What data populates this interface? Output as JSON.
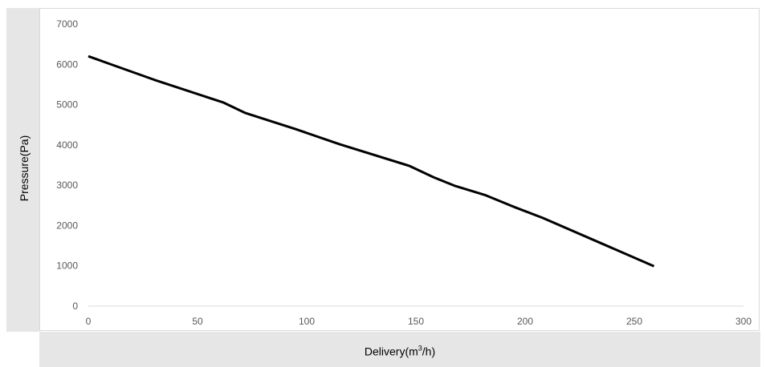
{
  "chart_data": {
    "type": "line",
    "xlabel_prefix": "Delivery(m",
    "xlabel_sup": "3",
    "xlabel_suffix": "/h)",
    "ylabel": "Pressure(Pa)",
    "xlim": [
      0,
      300
    ],
    "ylim": [
      0,
      7000
    ],
    "x_ticks": [
      0,
      50,
      100,
      150,
      200,
      250,
      300
    ],
    "y_ticks": [
      0,
      1000,
      2000,
      3000,
      4000,
      5000,
      6000,
      7000
    ],
    "grid": false,
    "legend": "none",
    "series": [
      {
        "color": "#000000",
        "x": [
          0,
          30,
          62,
          72,
          95,
          115,
          147,
          158,
          168,
          182,
          195,
          208,
          259
        ],
        "y": [
          6200,
          5620,
          5050,
          4790,
          4390,
          4020,
          3480,
          3200,
          2980,
          2750,
          2460,
          2190,
          990
        ]
      }
    ]
  }
}
